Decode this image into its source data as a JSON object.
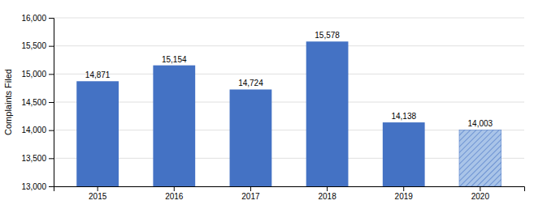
{
  "chart_data": {
    "type": "bar",
    "categories": [
      "2015",
      "2016",
      "2017",
      "2018",
      "2019",
      "2020"
    ],
    "values": [
      14871,
      15154,
      14724,
      15578,
      14138,
      14003
    ],
    "value_labels": [
      "14,871",
      "15,154",
      "14,724",
      "15,578",
      "14,138",
      "14,003"
    ],
    "data_labels": true,
    "colors": [
      "#4472C4",
      "#4472C4",
      "#4472C4",
      "#4472C4",
      "#4472C4",
      "#A9C4E8"
    ],
    "ylabel": "Complaints Filed",
    "ylim": [
      13000,
      16000
    ],
    "yticks": [
      {
        "value": 13000,
        "label": "13,000"
      },
      {
        "value": 13500,
        "label": "13,500"
      },
      {
        "value": 14000,
        "label": "14,000"
      },
      {
        "value": 14500,
        "label": "14,500"
      },
      {
        "value": 15000,
        "label": "15,000"
      },
      {
        "value": 15500,
        "label": "15,500"
      },
      {
        "value": 16000,
        "label": "16,000"
      }
    ],
    "grid": true
  }
}
